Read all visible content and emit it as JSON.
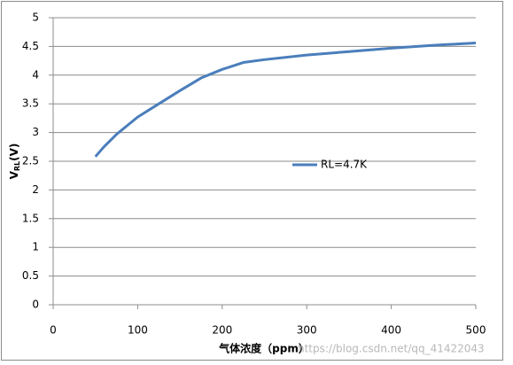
{
  "chart_data": {
    "type": "line",
    "y_label": {
      "main": "V",
      "sub": "RL",
      "unit": "(V)"
    },
    "x_label": "气体浓度（ppm）",
    "watermark": "https://blog.csdn.net/qq_41422043",
    "x": [
      50,
      60,
      75,
      100,
      125,
      150,
      175,
      200,
      225,
      250,
      300,
      350,
      400,
      450,
      500
    ],
    "series": [
      {
        "name": "RL=4.7K",
        "color": "#4a7ebb",
        "values": [
          2.58,
          2.75,
          2.97,
          3.27,
          3.5,
          3.73,
          3.95,
          4.1,
          4.22,
          4.27,
          4.35,
          4.41,
          4.47,
          4.52,
          4.56
        ]
      }
    ],
    "xlim": [
      0,
      500
    ],
    "xticks": [
      0,
      100,
      200,
      300,
      400,
      500
    ],
    "ylim": [
      0,
      5
    ],
    "yticks": [
      0,
      0.5,
      1,
      1.5,
      2,
      2.5,
      3,
      3.5,
      4,
      4.5,
      5
    ],
    "grid": true
  }
}
